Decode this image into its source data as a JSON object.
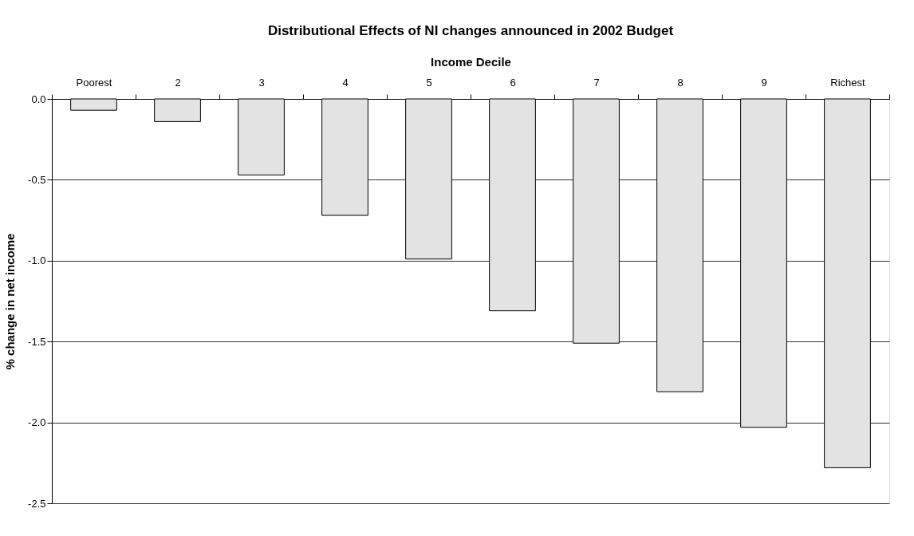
{
  "chart_data": {
    "type": "bar",
    "title": "Distributional Effects of NI changes announced in 2002 Budget",
    "xlabel": "Income Decile",
    "ylabel": "% change in net income",
    "categories": [
      "Poorest",
      "2",
      "3",
      "4",
      "5",
      "6",
      "7",
      "8",
      "9",
      "Richest"
    ],
    "values": [
      -0.07,
      -0.14,
      -0.47,
      -0.72,
      -0.99,
      -1.31,
      -1.51,
      -1.81,
      -2.03,
      -2.28
    ],
    "color": "#e3e3e3",
    "ylim": [
      -2.5,
      0.0
    ],
    "yticks": [
      {
        "value": 0,
        "label": "0.0"
      },
      {
        "value": -0.5,
        "label": "-0.5"
      },
      {
        "value": -1,
        "label": "-1.0"
      },
      {
        "value": -1.5,
        "label": "-1.5"
      },
      {
        "value": -2,
        "label": "-2.0"
      },
      {
        "value": -2.5,
        "label": "-2.5"
      }
    ],
    "grid": "y"
  }
}
